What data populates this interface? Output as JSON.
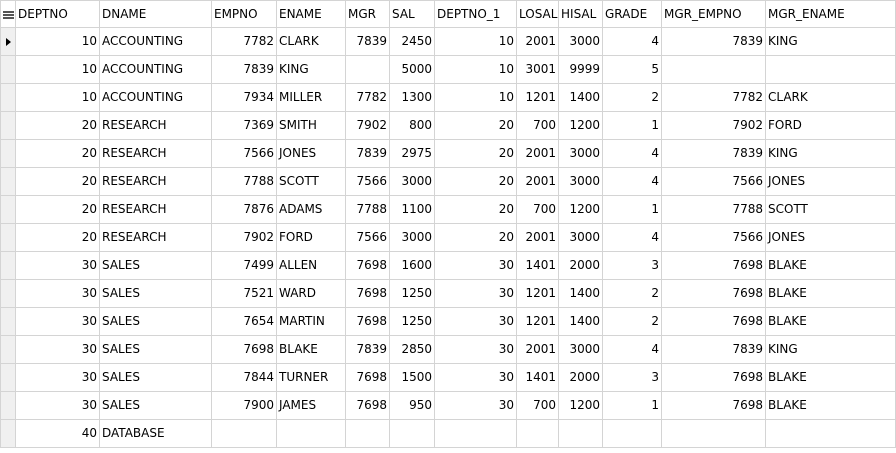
{
  "columns": [
    "DEPTNO",
    "DNAME",
    "EMPNO",
    "ENAME",
    "MGR",
    "SAL",
    "DEPTNO_1",
    "LOSAL",
    "HISAL",
    "GRADE",
    "MGR_EMPNO",
    "MGR_ENAME"
  ],
  "rows": [
    [
      "10",
      "ACCOUNTING",
      "7782",
      "CLARK",
      "7839",
      "2450",
      "10",
      "2001",
      "3000",
      "4",
      "7839",
      "KING"
    ],
    [
      "10",
      "ACCOUNTING",
      "7839",
      "KING",
      "",
      "5000",
      "10",
      "3001",
      "9999",
      "5",
      "",
      ""
    ],
    [
      "10",
      "ACCOUNTING",
      "7934",
      "MILLER",
      "7782",
      "1300",
      "10",
      "1201",
      "1400",
      "2",
      "7782",
      "CLARK"
    ],
    [
      "20",
      "RESEARCH",
      "7369",
      "SMITH",
      "7902",
      "800",
      "20",
      "700",
      "1200",
      "1",
      "7902",
      "FORD"
    ],
    [
      "20",
      "RESEARCH",
      "7566",
      "JONES",
      "7839",
      "2975",
      "20",
      "2001",
      "3000",
      "4",
      "7839",
      "KING"
    ],
    [
      "20",
      "RESEARCH",
      "7788",
      "SCOTT",
      "7566",
      "3000",
      "20",
      "2001",
      "3000",
      "4",
      "7566",
      "JONES"
    ],
    [
      "20",
      "RESEARCH",
      "7876",
      "ADAMS",
      "7788",
      "1100",
      "20",
      "700",
      "1200",
      "1",
      "7788",
      "SCOTT"
    ],
    [
      "20",
      "RESEARCH",
      "7902",
      "FORD",
      "7566",
      "3000",
      "20",
      "2001",
      "3000",
      "4",
      "7566",
      "JONES"
    ],
    [
      "30",
      "SALES",
      "7499",
      "ALLEN",
      "7698",
      "1600",
      "30",
      "1401",
      "2000",
      "3",
      "7698",
      "BLAKE"
    ],
    [
      "30",
      "SALES",
      "7521",
      "WARD",
      "7698",
      "1250",
      "30",
      "1201",
      "1400",
      "2",
      "7698",
      "BLAKE"
    ],
    [
      "30",
      "SALES",
      "7654",
      "MARTIN",
      "7698",
      "1250",
      "30",
      "1201",
      "1400",
      "2",
      "7698",
      "BLAKE"
    ],
    [
      "30",
      "SALES",
      "7698",
      "BLAKE",
      "7839",
      "2850",
      "30",
      "2001",
      "3000",
      "4",
      "7839",
      "KING"
    ],
    [
      "30",
      "SALES",
      "7844",
      "TURNER",
      "7698",
      "1500",
      "30",
      "1401",
      "2000",
      "3",
      "7698",
      "BLAKE"
    ],
    [
      "30",
      "SALES",
      "7900",
      "JAMES",
      "7698",
      "950",
      "30",
      "700",
      "1200",
      "1",
      "7698",
      "BLAKE"
    ],
    [
      "40",
      "DATABASE",
      "",
      "",
      "",
      "",
      "",
      "",
      "",
      "",
      "",
      ""
    ]
  ],
  "current_row": 0,
  "icons": {
    "header_corner": "grid-menu-icon",
    "row_indicator": "current-row-pointer-icon"
  }
}
